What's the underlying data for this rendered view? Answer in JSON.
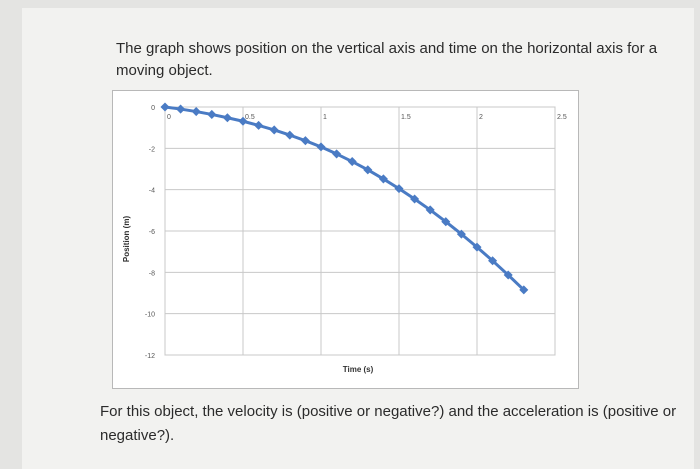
{
  "question": {
    "prompt": "The graph shows position on the vertical axis and time on the horizontal axis for a moving object.",
    "followup": "For this object, the velocity is (positive or negative?) and the acceleration is (positive or negative?)."
  },
  "chart_data": {
    "type": "line",
    "title": "",
    "xlabel": "Time (s)",
    "ylabel": "Position (m)",
    "xlim": [
      0,
      2.5
    ],
    "ylim": [
      -12,
      0
    ],
    "x_ticks": [
      "0",
      "0.5",
      "1",
      "1.5",
      "2",
      "2.5"
    ],
    "y_ticks": [
      "0",
      "-2",
      "-4",
      "-6",
      "-8",
      "-10",
      "-12"
    ],
    "grid": true,
    "line_color": "#4a7bc4",
    "marker_color": "#4a7bc4",
    "series": [
      {
        "x": [
          0,
          0.1,
          0.2,
          0.3,
          0.4,
          0.5,
          0.6,
          0.7,
          0.8,
          0.9,
          1.0,
          1.1,
          1.2,
          1.3,
          1.4,
          1.5,
          1.6,
          1.7,
          1.8,
          1.9,
          2.0,
          2.1,
          2.2,
          2.3
        ],
        "y": [
          0,
          -0.1,
          -0.22,
          -0.36,
          -0.52,
          -0.69,
          -0.89,
          -1.11,
          -1.36,
          -1.63,
          -1.93,
          -2.27,
          -2.64,
          -3.04,
          -3.48,
          -3.95,
          -4.45,
          -4.98,
          -5.55,
          -6.15,
          -6.78,
          -7.44,
          -8.13,
          -8.85
        ]
      }
    ]
  }
}
